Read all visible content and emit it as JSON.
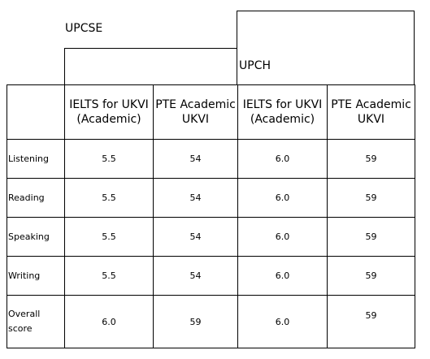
{
  "header": {
    "group_left": "UPCSE",
    "group_right": "UPCH"
  },
  "columns": [
    [
      "IELTS for UKVI",
      "(Academic)"
    ],
    [
      "PTE Academic",
      "UKVI"
    ],
    [
      "IELTS for UKVI",
      "(Academic)"
    ],
    [
      "PTE Academic",
      "UKVI"
    ]
  ],
  "rows": [
    {
      "label": [
        "Listening"
      ],
      "values": [
        "5.5",
        "54",
        "6.0",
        "59"
      ]
    },
    {
      "label": [
        "Reading"
      ],
      "values": [
        "5.5",
        "54",
        "6.0",
        "59"
      ]
    },
    {
      "label": [
        "Speaking"
      ],
      "values": [
        "5.5",
        "54",
        "6.0",
        "59"
      ]
    },
    {
      "label": [
        "Writing"
      ],
      "values": [
        "5.5",
        "54",
        "6.0",
        "59"
      ]
    },
    {
      "label": [
        "Overall",
        "score"
      ],
      "values": [
        "6.0",
        "59",
        "6.0",
        "59"
      ]
    }
  ]
}
